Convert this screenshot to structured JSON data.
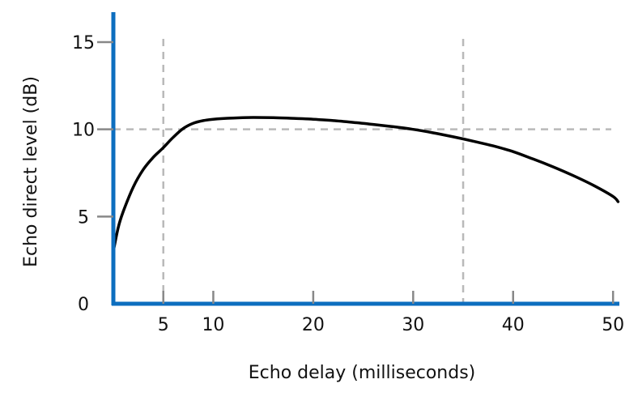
{
  "chart_data": {
    "type": "line",
    "title": "",
    "xlabel": "Echo delay (milliseconds)",
    "ylabel": "Echo direct level (dB)",
    "xlim": [
      0,
      51
    ],
    "ylim": [
      0,
      16
    ],
    "x_ticks": [
      5,
      10,
      20,
      30,
      40,
      50
    ],
    "y_ticks": [
      0,
      5,
      10,
      15
    ],
    "grid": false,
    "reference_lines": {
      "vertical": [
        5,
        35
      ],
      "horizontal": [
        10
      ]
    },
    "series": [
      {
        "x": [
          0,
          0.5,
          1,
          2,
          3,
          4,
          5,
          6,
          7,
          8,
          9,
          10,
          12,
          14,
          16,
          18,
          20,
          22,
          24,
          26,
          28,
          30,
          32,
          34,
          36,
          38,
          40,
          42,
          44,
          46,
          48,
          50,
          50.5
        ],
        "y": [
          3.0,
          4.4,
          5.3,
          6.7,
          7.7,
          8.4,
          8.95,
          9.55,
          10.05,
          10.35,
          10.5,
          10.58,
          10.65,
          10.68,
          10.67,
          10.63,
          10.58,
          10.5,
          10.4,
          10.28,
          10.15,
          10.0,
          9.8,
          9.57,
          9.32,
          9.05,
          8.72,
          8.3,
          7.85,
          7.35,
          6.8,
          6.15,
          5.85
        ]
      }
    ]
  },
  "colors": {
    "axis": "#0d6ebf",
    "curve": "#000000",
    "reference": "#b9b9b9",
    "text": "#111111"
  }
}
